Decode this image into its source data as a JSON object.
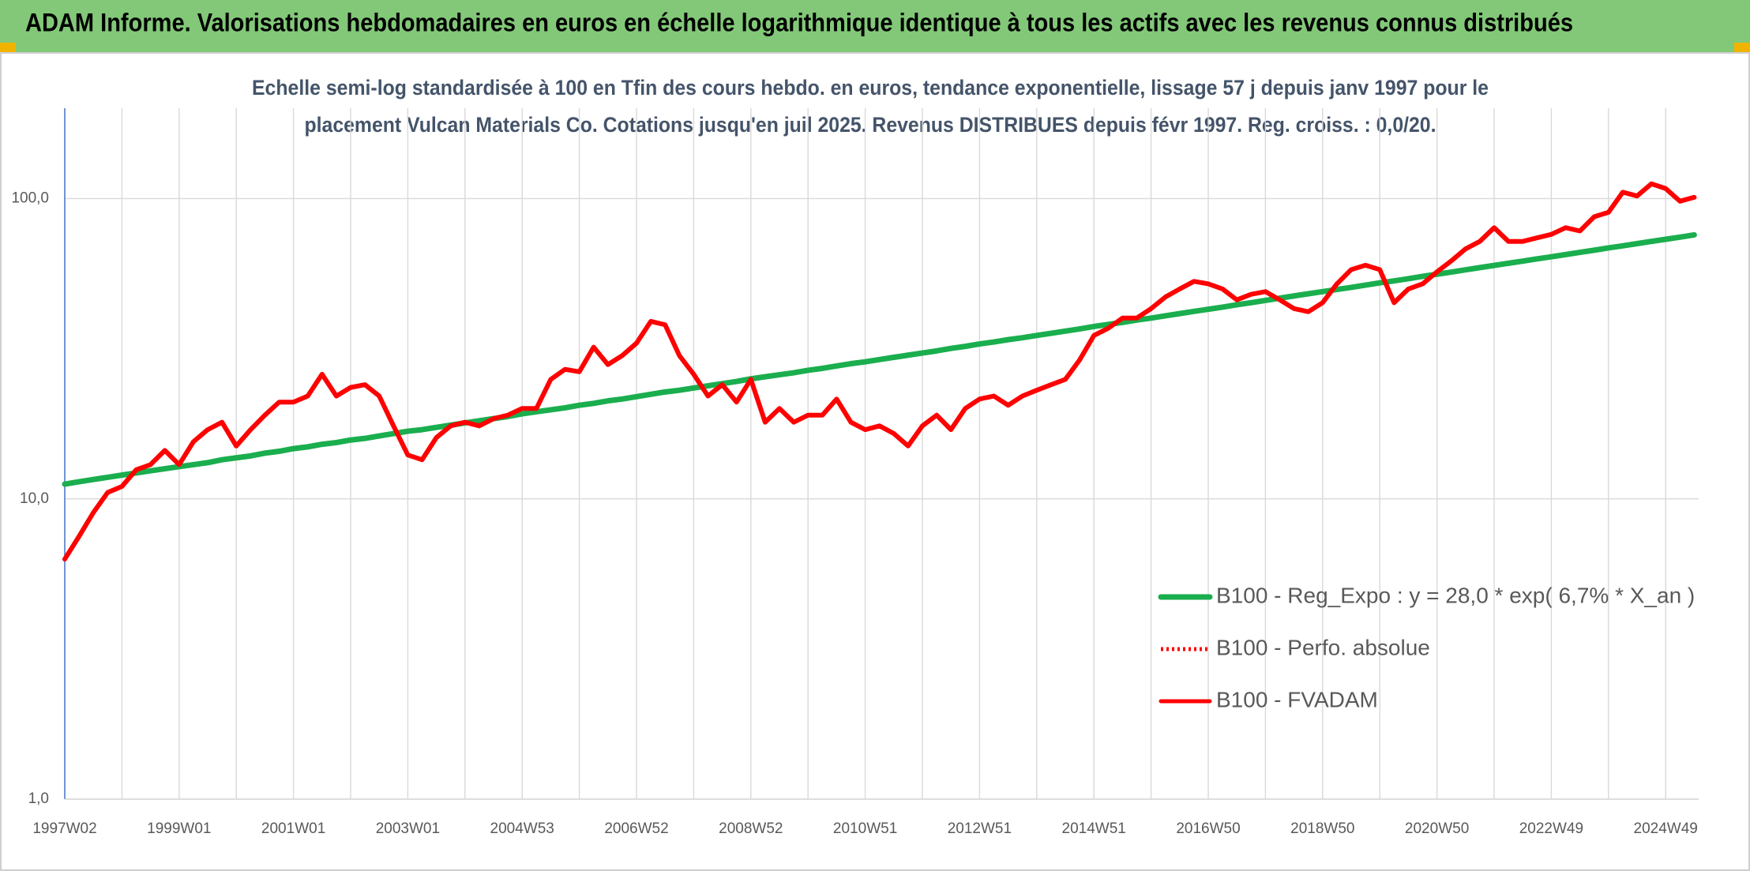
{
  "chart_data": {
    "type": "line",
    "title": "ADAM Informe. Valorisations hebdomadaires en euros en échelle logarithmique identique à tous les actifs avec les revenus connus distribués",
    "subtitle": [
      "Echelle semi-log standardisée à 100 en Tfin des cours hebdo. en euros, tendance exponentielle, lissage 57 j depuis janv 1997 pour le",
      "placement Vulcan Materials Co. Cotations jusqu'en juil 2025. Revenus DISTRIBUES depuis févr 1997. Reg. croiss. : 0,0/20."
    ],
    "log_scale": true,
    "grid": true,
    "legend": "lower right",
    "ylim": [
      1,
      200
    ],
    "yticks": [
      {
        "value": 1,
        "label": "1,0"
      },
      {
        "value": 10,
        "label": "10,0"
      },
      {
        "value": 100,
        "label": "100,0"
      }
    ],
    "categories": [
      "1997W02",
      null,
      null,
      null,
      null,
      null,
      null,
      null,
      "1999W01",
      null,
      null,
      null,
      null,
      null,
      null,
      null,
      "2001W01",
      null,
      null,
      null,
      null,
      null,
      null,
      null,
      "2003W01",
      null,
      null,
      null,
      null,
      null,
      null,
      null,
      "2004W53",
      null,
      null,
      null,
      null,
      null,
      null,
      null,
      "2006W52",
      null,
      null,
      null,
      null,
      null,
      null,
      null,
      "2008W52",
      null,
      null,
      null,
      null,
      null,
      null,
      null,
      "2010W51",
      null,
      null,
      null,
      null,
      null,
      null,
      null,
      "2012W51",
      null,
      null,
      null,
      null,
      null,
      null,
      null,
      "2014W51",
      null,
      null,
      null,
      null,
      null,
      null,
      null,
      "2016W50",
      null,
      null,
      null,
      null,
      null,
      null,
      null,
      "2018W50",
      null,
      null,
      null,
      null,
      null,
      null,
      null,
      "2020W50",
      null,
      null,
      null,
      null,
      null,
      null,
      null,
      "2022W49",
      null,
      null,
      null,
      null,
      null,
      null,
      null,
      "2024W49",
      null,
      null
    ],
    "series": [
      {
        "name": "B100 - Reg_Expo : y = 28,0 * exp( 6,7% *  X_an )",
        "color": "#1aae4e",
        "line_style": "solid",
        "values": [
          11.2,
          11.4,
          11.6,
          11.8,
          12.0,
          12.2,
          12.4,
          12.6,
          12.8,
          13.0,
          13.2,
          13.5,
          13.7,
          13.9,
          14.2,
          14.4,
          14.7,
          14.9,
          15.2,
          15.4,
          15.7,
          15.9,
          16.2,
          16.5,
          16.8,
          17.0,
          17.3,
          17.6,
          17.9,
          18.2,
          18.5,
          18.8,
          19.2,
          19.5,
          19.8,
          20.1,
          20.5,
          20.8,
          21.2,
          21.5,
          21.9,
          22.3,
          22.7,
          23.0,
          23.4,
          23.8,
          24.2,
          24.6,
          25.1,
          25.5,
          25.9,
          26.3,
          26.8,
          27.2,
          27.7,
          28.2,
          28.6,
          29.1,
          29.6,
          30.1,
          30.6,
          31.1,
          31.7,
          32.2,
          32.8,
          33.3,
          33.9,
          34.4,
          35.0,
          35.6,
          36.2,
          36.8,
          37.5,
          38.1,
          38.7,
          39.4,
          40.0,
          40.7,
          41.4,
          42.1,
          42.8,
          43.5,
          44.3,
          45.0,
          45.8,
          46.6,
          47.4,
          48.2,
          49.0,
          49.8,
          50.6,
          51.5,
          52.4,
          53.2,
          54.1,
          55.1,
          56.0,
          56.9,
          57.9,
          58.9,
          59.9,
          60.9,
          61.9,
          63.0,
          64.0,
          65.1,
          66.2,
          67.3,
          68.5,
          69.6,
          70.8,
          72.0,
          73.2,
          74.4,
          75.7
        ]
      },
      {
        "name": "B100 - Perfo. absolue",
        "color": "#ff0000",
        "line_style": "dotted",
        "values": [
          6.3,
          7.5,
          9,
          10.5,
          11,
          12.5,
          13,
          14.5,
          13,
          15.5,
          17,
          18,
          15,
          17,
          19,
          21,
          21,
          22,
          26,
          22,
          23.5,
          24,
          22,
          17.5,
          14,
          13.5,
          16,
          17.5,
          18,
          17.5,
          18.5,
          19,
          20,
          20,
          25,
          27,
          26.5,
          32,
          28,
          30,
          33,
          39,
          38,
          30,
          26,
          22,
          24,
          21,
          25,
          18,
          20,
          18,
          19,
          19,
          21.5,
          18,
          17,
          17.5,
          16.5,
          15,
          17.5,
          19,
          17,
          20,
          21.5,
          22,
          20.5,
          22,
          23,
          24,
          25,
          29,
          35,
          37,
          40,
          40,
          43,
          47,
          50,
          53,
          52,
          50,
          46,
          48,
          49,
          46,
          43,
          42,
          45,
          52,
          58,
          60,
          58,
          45,
          50,
          52,
          57,
          62,
          68,
          72,
          80,
          72,
          72,
          74,
          76,
          80,
          78,
          87,
          90,
          105,
          102,
          112,
          108,
          98,
          101
        ]
      },
      {
        "name": "B100 - FVADAM",
        "color": "#ff0000",
        "line_style": "solid",
        "values": [
          6.3,
          7.5,
          9,
          10.5,
          11,
          12.5,
          13,
          14.5,
          13,
          15.5,
          17,
          18,
          15,
          17,
          19,
          21,
          21,
          22,
          26,
          22,
          23.5,
          24,
          22,
          17.5,
          14,
          13.5,
          16,
          17.5,
          18,
          17.5,
          18.5,
          19,
          20,
          20,
          25,
          27,
          26.5,
          32,
          28,
          30,
          33,
          39,
          38,
          30,
          26,
          22,
          24,
          21,
          25,
          18,
          20,
          18,
          19,
          19,
          21.5,
          18,
          17,
          17.5,
          16.5,
          15,
          17.5,
          19,
          17,
          20,
          21.5,
          22,
          20.5,
          22,
          23,
          24,
          25,
          29,
          35,
          37,
          40,
          40,
          43,
          47,
          50,
          53,
          52,
          50,
          46,
          48,
          49,
          46,
          43,
          42,
          45,
          52,
          58,
          60,
          58,
          45,
          50,
          52,
          57,
          62,
          68,
          72,
          80,
          72,
          72,
          74,
          76,
          80,
          78,
          87,
          90,
          105,
          102,
          112,
          108,
          98,
          101
        ]
      }
    ]
  }
}
